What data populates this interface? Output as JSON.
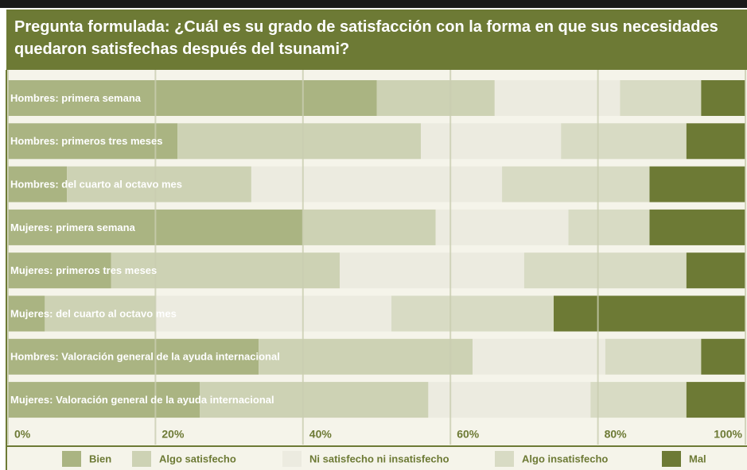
{
  "chart_data": {
    "type": "stacked_bar_horizontal",
    "title": "Pregunta formulada: ¿Cuál es su grado de satisfacción con la forma en que sus necesidades quedaron satisfechas después del tsunami?",
    "categories": [
      "Hombres: primera semana",
      "Hombres: primeros tres meses",
      "Hombres: del cuarto al octavo mes",
      "Mujeres: primera semana",
      "Mujeres: primeros tres meses",
      "Mujeres: del cuarto al octavo mes",
      "Hombres: Valoración general de la ayuda internacional",
      "Mujeres: Valoración general de la ayuda internacional"
    ],
    "series": [
      {
        "name": "Bien",
        "color": "#aab482",
        "values": [
          50,
          23,
          8,
          40,
          14,
          5,
          34,
          26
        ]
      },
      {
        "name": "Algo satisfecho",
        "color": "#cdd2b4",
        "values": [
          16,
          33,
          25,
          18,
          31,
          15,
          29,
          31
        ]
      },
      {
        "name": "Ni satisfecho ni insatisfecho",
        "color": "#ecebe0",
        "values": [
          17,
          19,
          34,
          18,
          25,
          32,
          18,
          22
        ]
      },
      {
        "name": "Algo insatisfecho",
        "color": "#d8dbc4",
        "values": [
          11,
          17,
          20,
          11,
          22,
          22,
          13,
          13
        ]
      },
      {
        "name": "Mal",
        "color": "#6d7a35",
        "values": [
          6,
          8,
          13,
          13,
          8,
          26,
          6,
          8
        ]
      }
    ],
    "xlim": [
      0,
      100
    ],
    "xticks": [
      {
        "value": 0,
        "label": "0%"
      },
      {
        "value": 20,
        "label": "20%"
      },
      {
        "value": 40,
        "label": "40%"
      },
      {
        "value": 60,
        "label": "60%"
      },
      {
        "value": 80,
        "label": "80%"
      },
      {
        "value": 100,
        "label": "100%"
      }
    ],
    "grid": true
  }
}
